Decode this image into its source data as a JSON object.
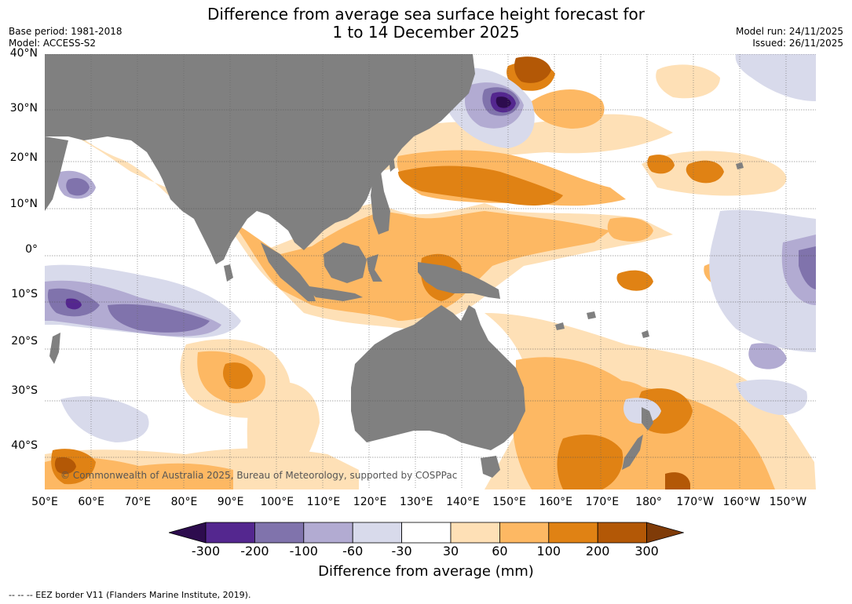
{
  "title": {
    "line1": "Difference from average sea surface height forecast for",
    "line2": "1 to 14 December 2025"
  },
  "meta": {
    "base_period": "Base period: 1981-2018",
    "model": "Model: ACCESS-S2",
    "model_run": "Model run: 24/11/2025",
    "issued": "Issued: 26/11/2025"
  },
  "map": {
    "extent": {
      "lon_min": 50,
      "lon_max": 216,
      "lat_min": -47,
      "lat_max": 40
    },
    "lat_labels": [
      {
        "lat": 40,
        "text": "40°N"
      },
      {
        "lat": 30,
        "text": "30°N"
      },
      {
        "lat": 20,
        "text": "20°N"
      },
      {
        "lat": 10,
        "text": "10°N"
      },
      {
        "lat": 0,
        "text": "0°"
      },
      {
        "lat": -10,
        "text": "10°S"
      },
      {
        "lat": -20,
        "text": "20°S"
      },
      {
        "lat": -30,
        "text": "30°S"
      },
      {
        "lat": -40,
        "text": "40°S"
      }
    ],
    "lon_labels": [
      {
        "lon": 50,
        "text": "50°E"
      },
      {
        "lon": 60,
        "text": "60°E"
      },
      {
        "lon": 70,
        "text": "70°E"
      },
      {
        "lon": 80,
        "text": "80°E"
      },
      {
        "lon": 90,
        "text": "90°E"
      },
      {
        "lon": 100,
        "text": "100°E"
      },
      {
        "lon": 110,
        "text": "110°E"
      },
      {
        "lon": 120,
        "text": "120°E"
      },
      {
        "lon": 130,
        "text": "130°E"
      },
      {
        "lon": 140,
        "text": "140°E"
      },
      {
        "lon": 150,
        "text": "150°E"
      },
      {
        "lon": 160,
        "text": "160°E"
      },
      {
        "lon": 170,
        "text": "170°E"
      },
      {
        "lon": 180,
        "text": "180°"
      },
      {
        "lon": 190,
        "text": "170°W"
      },
      {
        "lon": 200,
        "text": "160°W"
      },
      {
        "lon": 210,
        "text": "150°W"
      }
    ],
    "copyright": "© Commonwealth of Australia 2025, Bureau of Meteorology, supported by COSPPac",
    "land_color": "#808080"
  },
  "colorbar": {
    "title": "Difference from average (mm)",
    "ticks": [
      "-300",
      "-200",
      "-100",
      "-60",
      "-30",
      "30",
      "60",
      "100",
      "200",
      "300"
    ],
    "colors": [
      "#2d0c4e",
      "#54278f",
      "#8073ac",
      "#b2abd2",
      "#d8daeb",
      "#ffffff",
      "#fee0b6",
      "#fdb863",
      "#e08214",
      "#b35806",
      "#7f3b08"
    ]
  },
  "footer": "--  --  -- EEZ border V11 (Flanders Marine Institute, 2019)."
}
